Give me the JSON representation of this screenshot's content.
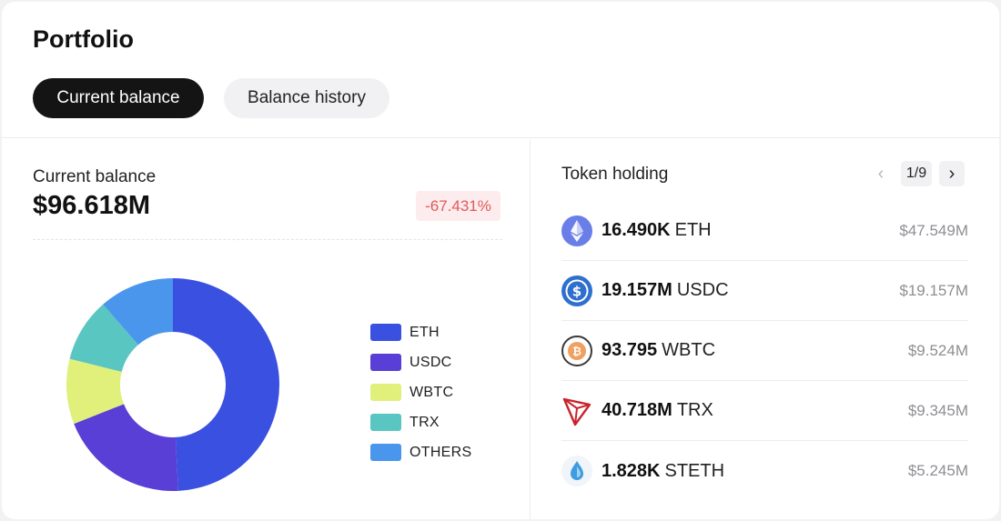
{
  "header": {
    "title": "Portfolio",
    "tabs": [
      {
        "label": "Current balance",
        "active": true
      },
      {
        "label": "Balance history",
        "active": false
      }
    ]
  },
  "balance": {
    "label": "Current balance",
    "value": "$96.618M",
    "change": "-67.431%",
    "change_color": "#e05a5a"
  },
  "chart_data": {
    "type": "pie",
    "title": "",
    "categories": [
      "ETH",
      "USDC",
      "WBTC",
      "TRX",
      "OTHERS"
    ],
    "values": [
      49.2,
      19.8,
      9.9,
      9.7,
      11.4
    ],
    "colors": [
      "#3a50e0",
      "#5a3fd6",
      "#e0f07a",
      "#5ac6c2",
      "#4a96ec"
    ],
    "donut": true,
    "legend_position": "right"
  },
  "holdings": {
    "title": "Token holding",
    "pager": {
      "prev": "‹",
      "page": "1/9",
      "next": "›"
    },
    "tokens": [
      {
        "amount": "16.490K",
        "symbol": "ETH",
        "usd": "$47.549M",
        "icon": "eth-icon"
      },
      {
        "amount": "19.157M",
        "symbol": "USDC",
        "usd": "$19.157M",
        "icon": "usdc-icon"
      },
      {
        "amount": "93.795",
        "symbol": "WBTC",
        "usd": "$9.524M",
        "icon": "wbtc-icon"
      },
      {
        "amount": "40.718M",
        "symbol": "TRX",
        "usd": "$9.345M",
        "icon": "trx-icon"
      },
      {
        "amount": "1.828K",
        "symbol": "STETH",
        "usd": "$5.245M",
        "icon": "steth-icon"
      }
    ]
  }
}
